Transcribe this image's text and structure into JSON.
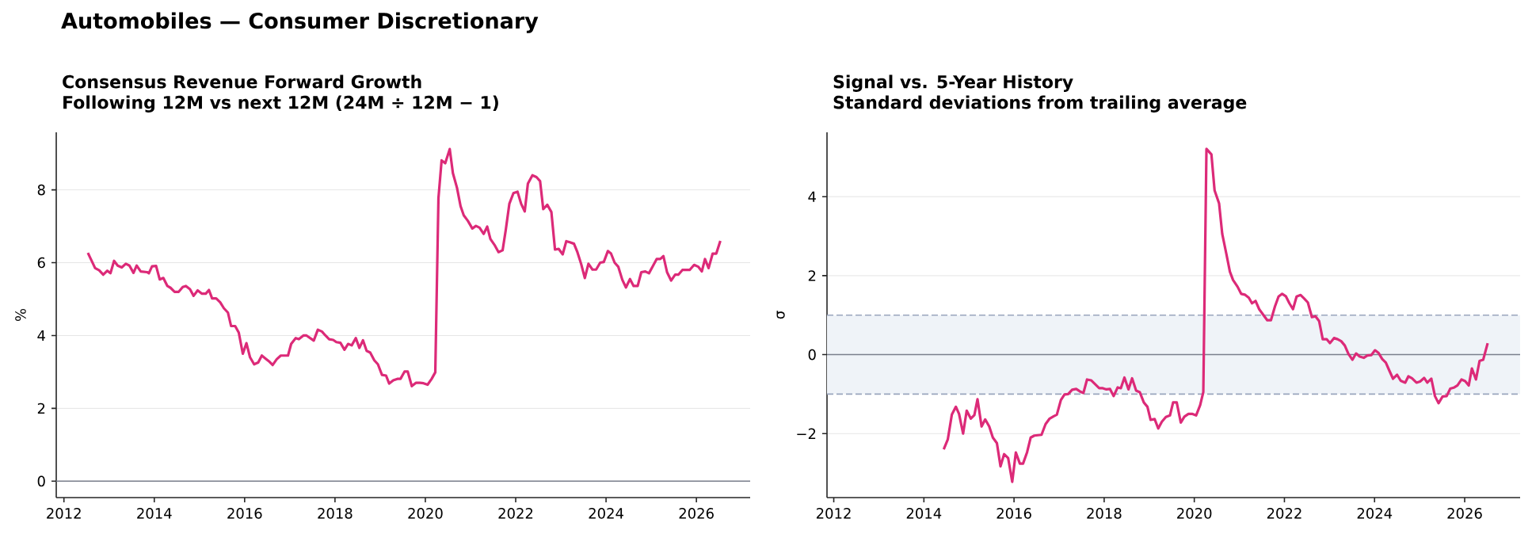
{
  "chart_data": [
    {
      "type": "line",
      "title": "Consensus Revenue Forward Growth",
      "subtitle": "Following 12M vs next 12M (24M ÷ 12M − 1)",
      "ylabel": "%",
      "annotations": [
        "Automobiles — Consumer Discretionary"
      ],
      "color": "#dc2a78",
      "grid": "y",
      "xlim": [
        2011.83,
        2027.19
      ],
      "xticks": [
        2012,
        2014,
        2016,
        2018,
        2020,
        2022,
        2024,
        2026
      ],
      "ylim": [
        -0.45,
        9.58
      ],
      "yticks": [
        0,
        2,
        4,
        6,
        8
      ],
      "ref_lines": [
        {
          "axis": "y",
          "value": 0,
          "color": "#7a7f8c"
        }
      ],
      "x": [
        2012.53,
        2012.69,
        2012.78,
        2012.87,
        2012.96,
        2013.03,
        2013.11,
        2013.19,
        2013.28,
        2013.37,
        2013.45,
        2013.54,
        2013.61,
        2013.7,
        2013.84,
        2013.88,
        2013.95,
        2014.04,
        2014.12,
        2014.2,
        2014.29,
        2014.36,
        2014.45,
        2014.54,
        2014.63,
        2014.7,
        2014.79,
        2014.87,
        2014.96,
        2015.05,
        2015.14,
        2015.21,
        2015.28,
        2015.37,
        2015.46,
        2015.54,
        2015.63,
        2015.7,
        2015.79,
        2015.87,
        2015.96,
        2016.04,
        2016.12,
        2016.21,
        2016.3,
        2016.38,
        2016.46,
        2016.55,
        2016.62,
        2016.71,
        2016.8,
        2016.96,
        2017.03,
        2017.13,
        2017.2,
        2017.3,
        2017.37,
        2017.53,
        2017.62,
        2017.71,
        2017.79,
        2017.87,
        2017.96,
        2018.03,
        2018.12,
        2018.21,
        2018.29,
        2018.37,
        2018.46,
        2018.54,
        2018.62,
        2018.7,
        2018.78,
        2018.87,
        2018.95,
        2019.04,
        2019.13,
        2019.2,
        2019.29,
        2019.38,
        2019.45,
        2019.54,
        2019.61,
        2019.7,
        2019.79,
        2019.88,
        2019.96,
        2020.05,
        2020.14,
        2020.22,
        2020.29,
        2020.36,
        2020.44,
        2020.54,
        2020.61,
        2020.7,
        2020.78,
        2020.85,
        2020.94,
        2021.04,
        2021.12,
        2021.2,
        2021.29,
        2021.37,
        2021.44,
        2021.54,
        2021.62,
        2021.71,
        2021.78,
        2021.86,
        2021.95,
        2022.04,
        2022.12,
        2022.2,
        2022.27,
        2022.37,
        2022.46,
        2022.54,
        2022.61,
        2022.7,
        2022.79,
        2022.87,
        2022.95,
        2023.04,
        2023.12,
        2023.2,
        2023.29,
        2023.36,
        2023.45,
        2023.53,
        2023.61,
        2023.7,
        2023.78,
        2023.87,
        2023.95,
        2024.04,
        2024.11,
        2024.19,
        2024.27,
        2024.36,
        2024.44,
        2024.53,
        2024.61,
        2024.7,
        2024.78,
        2024.87,
        2024.95,
        2025.03,
        2025.12,
        2025.2,
        2025.27,
        2025.35,
        2025.44,
        2025.53,
        2025.6,
        2025.69,
        2025.85,
        2025.95,
        2026.04,
        2026.12,
        2026.19,
        2026.27,
        2026.36,
        2026.44,
        2026.53
      ],
      "values": [
        6.27,
        5.85,
        5.79,
        5.67,
        5.78,
        5.71,
        6.05,
        5.92,
        5.87,
        5.97,
        5.92,
        5.72,
        5.92,
        5.76,
        5.74,
        5.71,
        5.9,
        5.91,
        5.54,
        5.58,
        5.36,
        5.31,
        5.2,
        5.2,
        5.33,
        5.36,
        5.27,
        5.09,
        5.24,
        5.15,
        5.15,
        5.25,
        5.02,
        5.02,
        4.91,
        4.75,
        4.63,
        4.26,
        4.26,
        4.08,
        3.5,
        3.79,
        3.4,
        3.21,
        3.26,
        3.45,
        3.37,
        3.28,
        3.19,
        3.35,
        3.45,
        3.45,
        3.77,
        3.93,
        3.9,
        4.0,
        4.0,
        3.86,
        4.16,
        4.11,
        4.0,
        3.9,
        3.88,
        3.82,
        3.8,
        3.61,
        3.77,
        3.73,
        3.93,
        3.66,
        3.87,
        3.58,
        3.53,
        3.32,
        3.21,
        2.92,
        2.9,
        2.68,
        2.77,
        2.81,
        2.81,
        3.01,
        3.01,
        2.61,
        2.7,
        2.7,
        2.69,
        2.65,
        2.81,
        2.99,
        7.77,
        8.81,
        8.73,
        9.12,
        8.46,
        8.06,
        7.55,
        7.3,
        7.15,
        6.94,
        7.01,
        6.96,
        6.79,
        6.99,
        6.65,
        6.47,
        6.29,
        6.34,
        6.9,
        7.62,
        7.91,
        7.95,
        7.62,
        7.41,
        8.17,
        8.4,
        8.35,
        8.24,
        7.47,
        7.59,
        7.39,
        6.36,
        6.38,
        6.23,
        6.59,
        6.56,
        6.52,
        6.31,
        5.96,
        5.58,
        5.97,
        5.81,
        5.81,
        6.0,
        6.02,
        6.32,
        6.25,
        6.0,
        5.89,
        5.53,
        5.32,
        5.55,
        5.36,
        5.36,
        5.74,
        5.76,
        5.71,
        5.89,
        6.1,
        6.1,
        6.18,
        5.74,
        5.51,
        5.67,
        5.67,
        5.8,
        5.8,
        5.94,
        5.89,
        5.76,
        6.1,
        5.85,
        6.25,
        6.25,
        6.6
      ]
    },
    {
      "type": "line",
      "title": "Signal vs. 5-Year History",
      "subtitle": "Standard deviations from trailing average",
      "ylabel": "σ",
      "color": "#dc2a78",
      "grid": "y",
      "xlim": [
        2011.85,
        2027.23
      ],
      "xticks": [
        2012,
        2014,
        2016,
        2018,
        2020,
        2022,
        2024,
        2026
      ],
      "ylim": [
        -3.62,
        5.63
      ],
      "yticks": [
        {
          "value": -2,
          "label": "−2"
        },
        0,
        2,
        4
      ],
      "bands": [
        {
          "axis": "y",
          "from": -1,
          "to": 1,
          "color": "#eff3f8"
        }
      ],
      "ref_lines": [
        {
          "axis": "y",
          "value": 0,
          "color": "#7a7f8c"
        },
        {
          "axis": "y",
          "value": 1,
          "color": "#9aa6bd",
          "line_style": "dashed"
        },
        {
          "axis": "y",
          "value": -1,
          "color": "#9aa6bd",
          "line_style": "dashed"
        }
      ],
      "x": [
        2014.44,
        2014.53,
        2014.62,
        2014.71,
        2014.78,
        2014.87,
        2014.95,
        2015.04,
        2015.12,
        2015.19,
        2015.28,
        2015.36,
        2015.45,
        2015.53,
        2015.62,
        2015.7,
        2015.78,
        2015.87,
        2015.96,
        2016.04,
        2016.13,
        2016.2,
        2016.29,
        2016.37,
        2016.45,
        2016.61,
        2016.7,
        2016.79,
        2016.88,
        2016.95,
        2017.04,
        2017.12,
        2017.2,
        2017.29,
        2017.38,
        2017.46,
        2017.54,
        2017.62,
        2017.71,
        2017.8,
        2017.89,
        2017.97,
        2018.05,
        2018.13,
        2018.21,
        2018.3,
        2018.37,
        2018.45,
        2018.54,
        2018.62,
        2018.71,
        2018.79,
        2018.88,
        2018.96,
        2019.03,
        2019.12,
        2019.2,
        2019.28,
        2019.37,
        2019.46,
        2019.53,
        2019.61,
        2019.7,
        2019.78,
        2019.87,
        2019.95,
        2020.04,
        2020.13,
        2020.2,
        2020.27,
        2020.38,
        2020.45,
        2020.55,
        2020.62,
        2020.71,
        2020.79,
        2020.86,
        2020.96,
        2021.04,
        2021.12,
        2021.21,
        2021.28,
        2021.36,
        2021.44,
        2021.53,
        2021.62,
        2021.7,
        2021.79,
        2021.87,
        2021.95,
        2022.03,
        2022.11,
        2022.19,
        2022.27,
        2022.36,
        2022.44,
        2022.52,
        2022.61,
        2022.69,
        2022.77,
        2022.85,
        2022.94,
        2023.01,
        2023.1,
        2023.18,
        2023.26,
        2023.34,
        2023.42,
        2023.51,
        2023.59,
        2023.67,
        2023.76,
        2023.84,
        2023.93,
        2024.01,
        2024.09,
        2024.17,
        2024.25,
        2024.33,
        2024.41,
        2024.5,
        2024.58,
        2024.68,
        2024.75,
        2024.83,
        2024.93,
        2025.01,
        2025.1,
        2025.17,
        2025.26,
        2025.34,
        2025.42,
        2025.51,
        2025.6,
        2025.68,
        2025.77,
        2025.84,
        2025.93,
        2026.01,
        2026.09,
        2026.16,
        2026.25,
        2026.33,
        2026.41,
        2026.51
      ],
      "values": [
        -2.4,
        -2.15,
        -1.52,
        -1.32,
        -1.5,
        -2.0,
        -1.42,
        -1.62,
        -1.53,
        -1.13,
        -1.82,
        -1.64,
        -1.82,
        -2.1,
        -2.24,
        -2.83,
        -2.52,
        -2.62,
        -3.22,
        -2.48,
        -2.76,
        -2.76,
        -2.47,
        -2.1,
        -2.05,
        -2.03,
        -1.76,
        -1.62,
        -1.56,
        -1.52,
        -1.15,
        -1.01,
        -1.0,
        -0.89,
        -0.87,
        -0.93,
        -0.97,
        -0.63,
        -0.65,
        -0.75,
        -0.85,
        -0.85,
        -0.88,
        -0.87,
        -1.05,
        -0.83,
        -0.85,
        -0.58,
        -0.88,
        -0.6,
        -0.91,
        -0.95,
        -1.21,
        -1.32,
        -1.65,
        -1.63,
        -1.87,
        -1.7,
        -1.58,
        -1.54,
        -1.21,
        -1.21,
        -1.72,
        -1.57,
        -1.5,
        -1.5,
        -1.54,
        -1.28,
        -0.95,
        5.21,
        5.07,
        4.16,
        3.83,
        3.06,
        2.56,
        2.1,
        1.89,
        1.72,
        1.54,
        1.52,
        1.44,
        1.3,
        1.36,
        1.15,
        1.01,
        0.87,
        0.87,
        1.22,
        1.47,
        1.54,
        1.48,
        1.3,
        1.15,
        1.47,
        1.51,
        1.42,
        1.32,
        0.95,
        0.97,
        0.85,
        0.39,
        0.39,
        0.29,
        0.42,
        0.39,
        0.34,
        0.23,
        0.02,
        -0.13,
        0.03,
        -0.05,
        -0.08,
        -0.02,
        -0.01,
        0.11,
        0.04,
        -0.11,
        -0.2,
        -0.41,
        -0.61,
        -0.51,
        -0.66,
        -0.71,
        -0.55,
        -0.6,
        -0.71,
        -0.68,
        -0.59,
        -0.71,
        -0.61,
        -1.05,
        -1.23,
        -1.06,
        -1.05,
        -0.86,
        -0.83,
        -0.78,
        -0.63,
        -0.67,
        -0.78,
        -0.35,
        -0.63,
        -0.16,
        -0.13,
        0.29
      ]
    }
  ]
}
